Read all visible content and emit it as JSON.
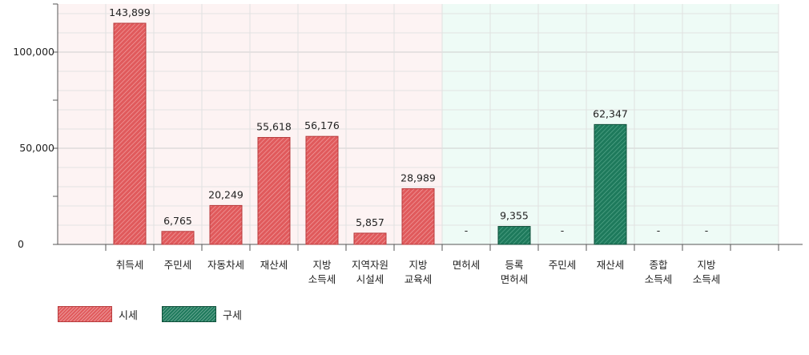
{
  "chart_data": {
    "type": "bar",
    "y_ticks": [
      {
        "value": 0,
        "label": "0"
      },
      {
        "value": 50000,
        "label": "50,000"
      },
      {
        "value": 100000,
        "label": "100,000"
      }
    ],
    "ylim": [
      0,
      125000
    ],
    "grid": true,
    "groups": [
      {
        "series": "시세",
        "color": "#e05a5c",
        "region": "#fdf3f3"
      },
      {
        "series": "구세",
        "color": "#1e7a5c",
        "region": "#eefbf6"
      }
    ],
    "categories": [
      {
        "lines": [
          "취득세"
        ],
        "series": "시세",
        "value": 143899,
        "value_label": "143,899",
        "display_value": 115000
      },
      {
        "lines": [
          "주민세"
        ],
        "series": "시세",
        "value": 6765,
        "value_label": "6,765"
      },
      {
        "lines": [
          "자동차세"
        ],
        "series": "시세",
        "value": 20249,
        "value_label": "20,249"
      },
      {
        "lines": [
          "재산세"
        ],
        "series": "시세",
        "value": 55618,
        "value_label": "55,618"
      },
      {
        "lines": [
          "지방",
          "소득세"
        ],
        "series": "시세",
        "value": 56176,
        "value_label": "56,176"
      },
      {
        "lines": [
          "지역자원",
          "시설세"
        ],
        "series": "시세",
        "value": 5857,
        "value_label": "5,857"
      },
      {
        "lines": [
          "지방",
          "교육세"
        ],
        "series": "시세",
        "value": 28989,
        "value_label": "28,989"
      },
      {
        "lines": [
          "면허세"
        ],
        "series": "구세",
        "value": null,
        "value_label": "-"
      },
      {
        "lines": [
          "등록",
          "면허세"
        ],
        "series": "구세",
        "value": 9355,
        "value_label": "9,355"
      },
      {
        "lines": [
          "주민세"
        ],
        "series": "구세",
        "value": null,
        "value_label": "-"
      },
      {
        "lines": [
          "재산세"
        ],
        "series": "구세",
        "value": 62347,
        "value_label": "62,347"
      },
      {
        "lines": [
          "종합",
          "소득세"
        ],
        "series": "구세",
        "value": null,
        "value_label": "-"
      },
      {
        "lines": [
          "지방",
          "소득세"
        ],
        "series": "구세",
        "value": null,
        "value_label": "-"
      }
    ],
    "legend": [
      {
        "label": "시세",
        "color": "#e05a5c"
      },
      {
        "label": "구세",
        "color": "#1e7a5c"
      }
    ],
    "legend_position": "bottom-left"
  }
}
